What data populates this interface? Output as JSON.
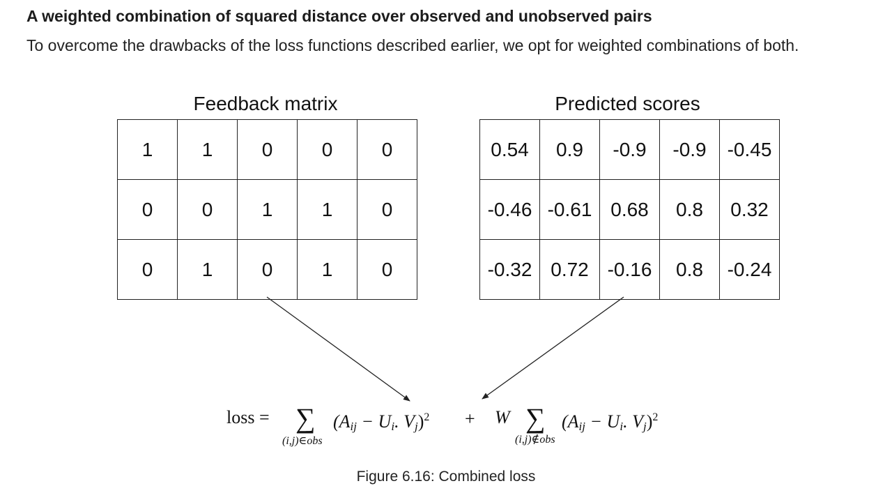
{
  "heading": "A weighted combination of squared distance over observed and unobserved pairs",
  "intro": "To overcome the drawbacks of the loss functions described earlier, we opt for weighted combinations of both.",
  "feedback": {
    "title": "Feedback matrix",
    "rows": [
      [
        "1",
        "1",
        "0",
        "0",
        "0"
      ],
      [
        "0",
        "0",
        "1",
        "1",
        "0"
      ],
      [
        "0",
        "1",
        "0",
        "1",
        "0"
      ]
    ]
  },
  "predicted": {
    "title": "Predicted scores",
    "rows": [
      [
        "0.54",
        "0.9",
        "-0.9",
        "-0.9",
        "-0.45"
      ],
      [
        "-0.46",
        "-0.61",
        "0.68",
        "0.8",
        "0.32"
      ],
      [
        "-0.32",
        "0.72",
        "-0.16",
        "0.8",
        "-0.24"
      ]
    ]
  },
  "formula": {
    "lhs": "loss =",
    "sigma": "∑",
    "term_open": "(A",
    "term_ij": "ij",
    "term_mid": " − U",
    "term_i": "i",
    "term_dot": ". V",
    "term_j": "j",
    "term_close": ")",
    "term_power": "2",
    "plus": "+",
    "weight": "W",
    "obs_sub": "(i,j)∈obs",
    "unobs_sub": "(i,j)∉obs"
  },
  "caption": "Figure 6.16: Combined loss"
}
